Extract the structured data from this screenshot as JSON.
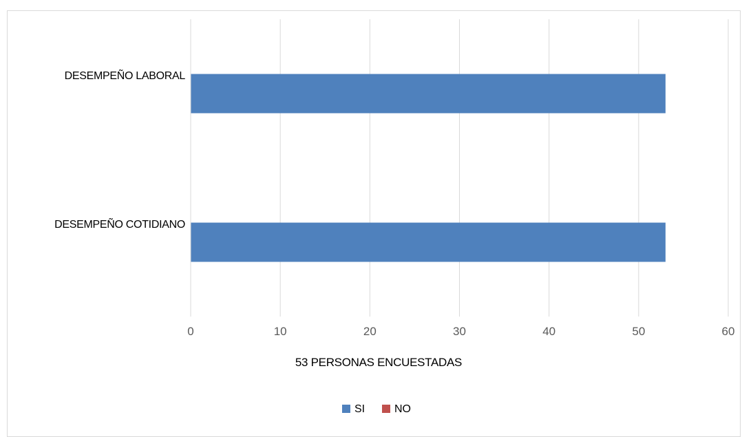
{
  "chart_data": {
    "type": "bar",
    "orientation": "horizontal",
    "categories": [
      "DESEMPEÑO LABORAL",
      "DESEMPEÑO COTIDIANO"
    ],
    "series": [
      {
        "name": "SI",
        "values": [
          53,
          53
        ],
        "color": "#4f81bd"
      },
      {
        "name": "NO",
        "values": [
          0,
          0
        ],
        "color": "#c0504d"
      }
    ],
    "xlabel": "53 PERSONAS ENCUESTADAS",
    "ylabel": "",
    "xlim": [
      0,
      60
    ],
    "xticks": [
      0,
      10,
      20,
      30,
      40,
      50,
      60
    ],
    "grid": true,
    "legend_position": "bottom"
  }
}
